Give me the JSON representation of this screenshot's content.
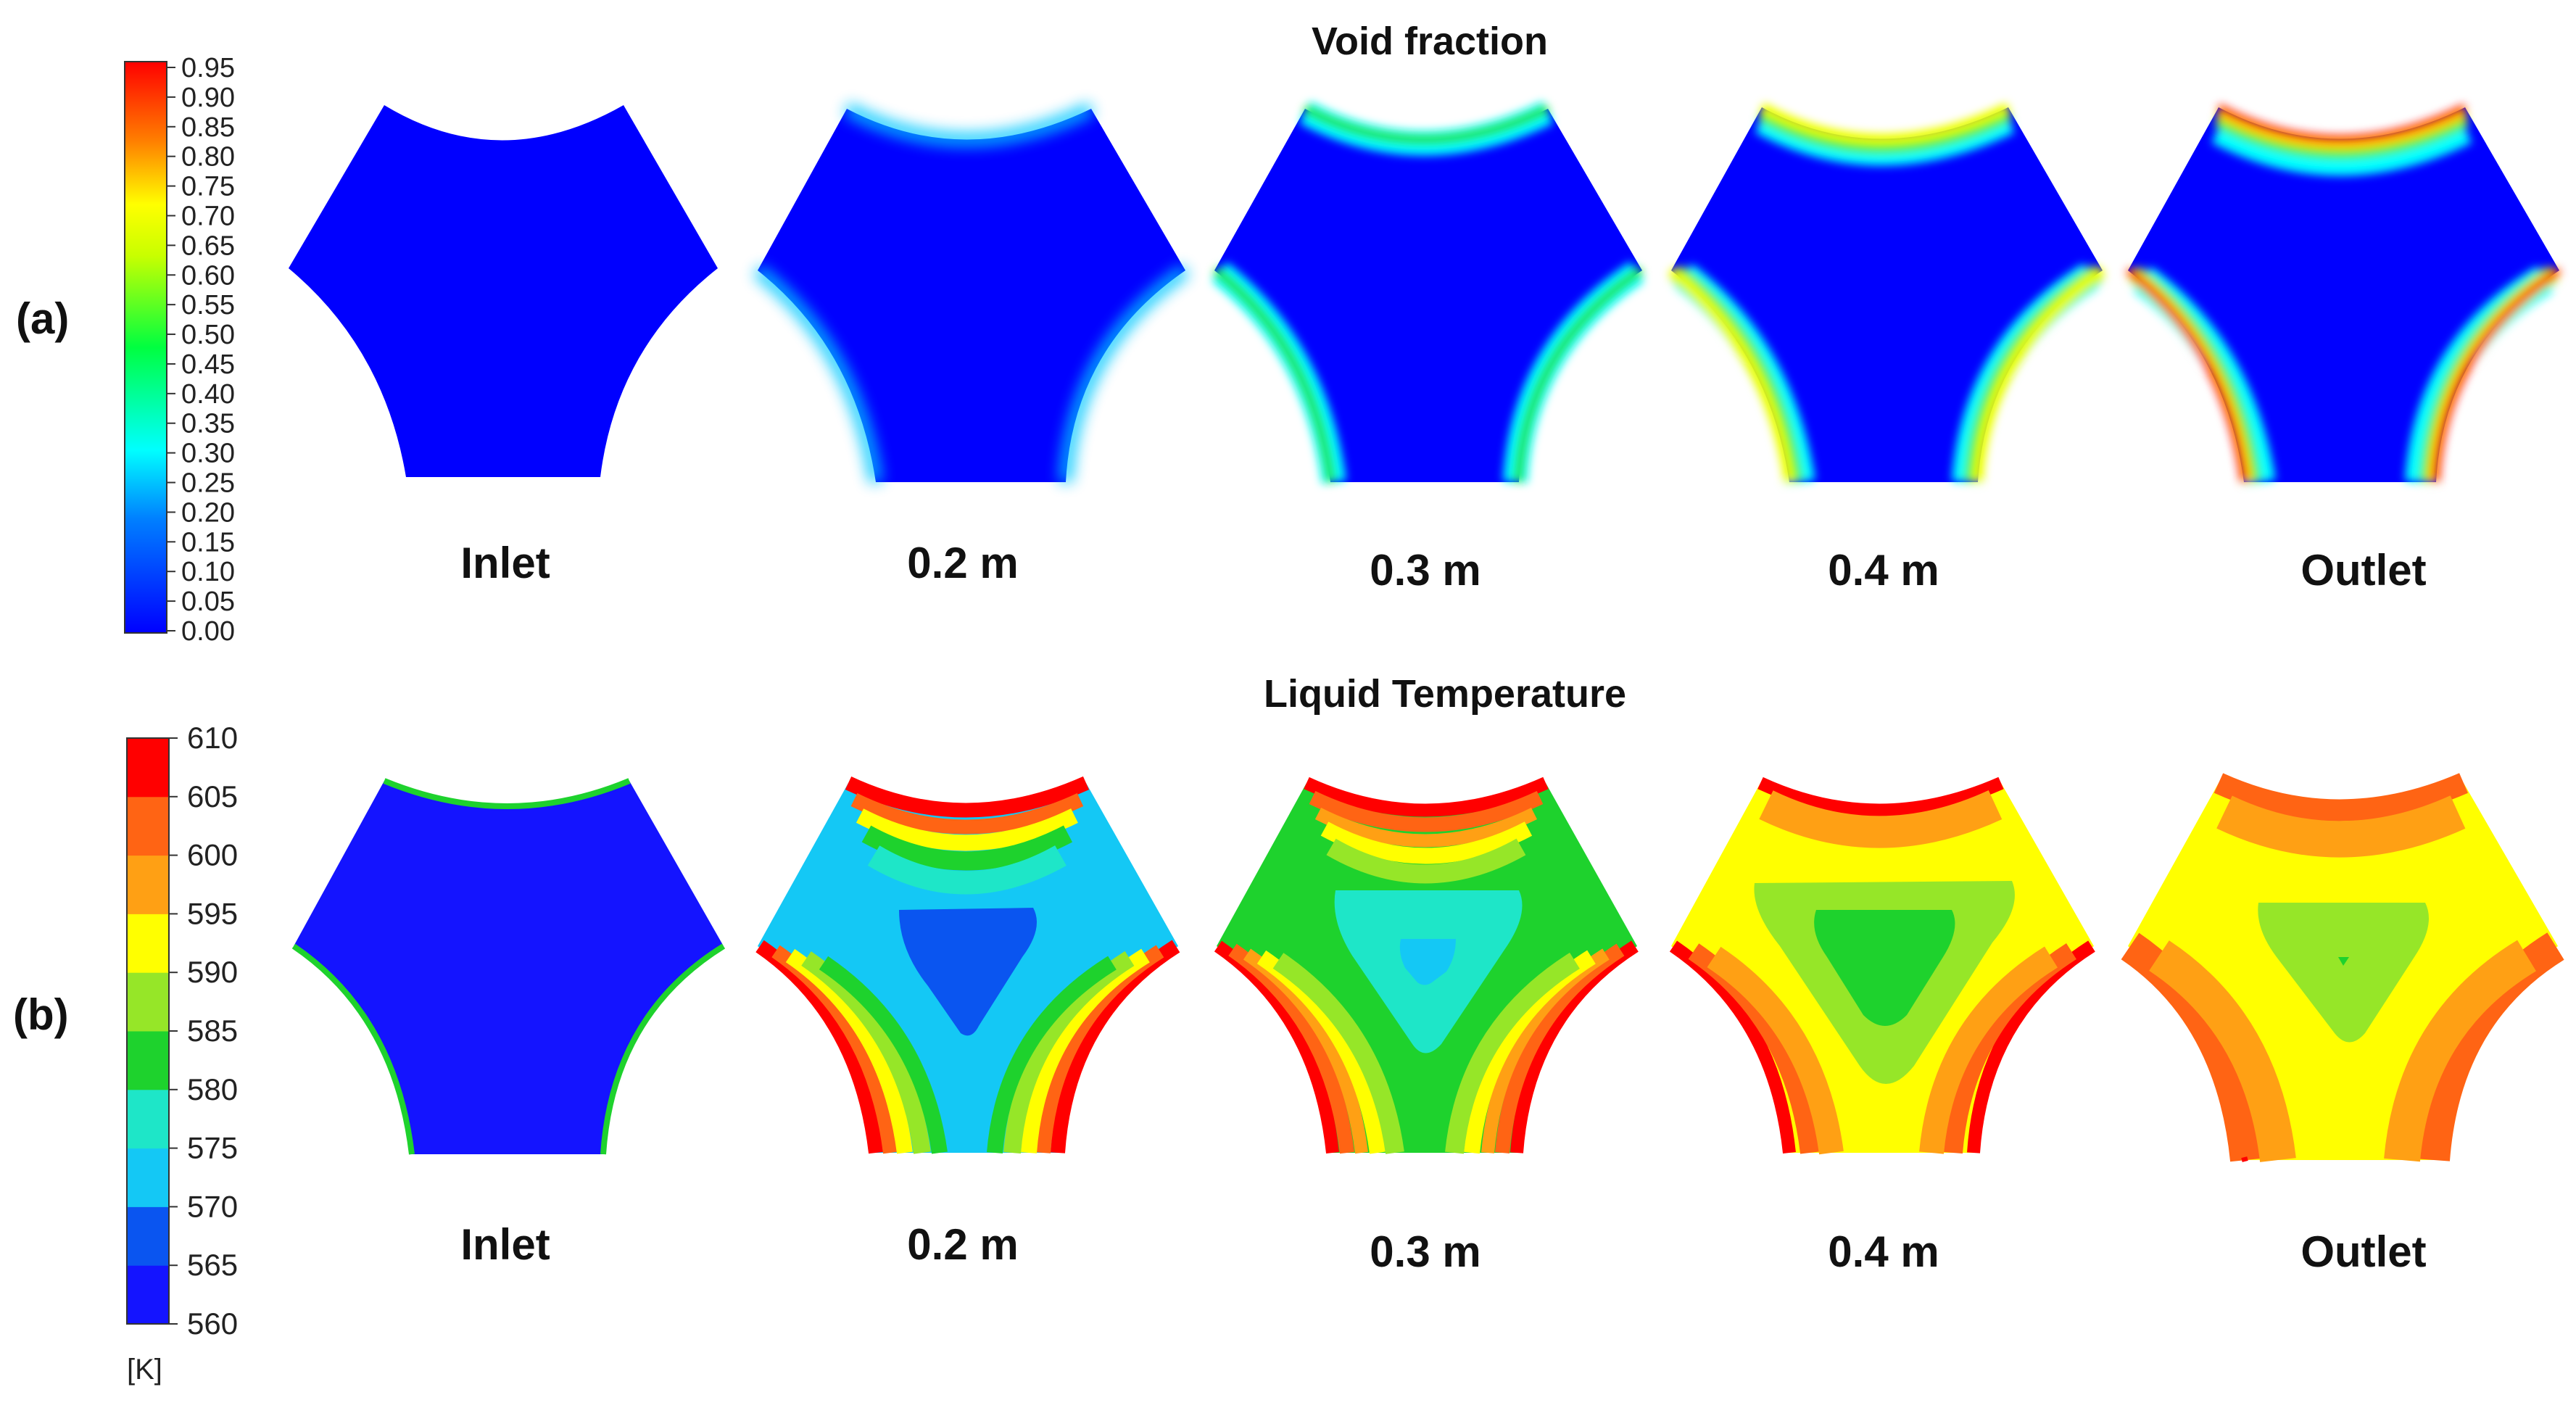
{
  "panels": {
    "a": {
      "label": "(a)",
      "title": "Void fraction",
      "legend_ticks": [
        "0.95",
        "0.90",
        "0.85",
        "0.80",
        "0.75",
        "0.70",
        "0.65",
        "0.60",
        "0.55",
        "0.50",
        "0.45",
        "0.40",
        "0.35",
        "0.30",
        "0.25",
        "0.20",
        "0.15",
        "0.10",
        "0.05",
        "0.00"
      ],
      "legend_unit": "",
      "captions": [
        "Inlet",
        "0.2 m",
        "0.3 m",
        "0.4 m",
        "Outlet"
      ],
      "colormap": "jet-continuous"
    },
    "b": {
      "label": "(b)",
      "title": "Liquid Temperature",
      "legend_ticks": [
        "610",
        "605",
        "600",
        "595",
        "590",
        "585",
        "580",
        "575",
        "570",
        "565",
        "560"
      ],
      "legend_unit": "[K]",
      "captions": [
        "Inlet",
        "0.2 m",
        "0.3 m",
        "0.4 m",
        "Outlet"
      ],
      "colormap": "jet-banded",
      "band_colors": [
        "#1414ff",
        "#0a55f0",
        "#14c8f5",
        "#1ee6c8",
        "#1ed22d",
        "#96e628",
        "#ffff00",
        "#ffa014",
        "#ff6414",
        "#ff0000"
      ]
    }
  }
}
